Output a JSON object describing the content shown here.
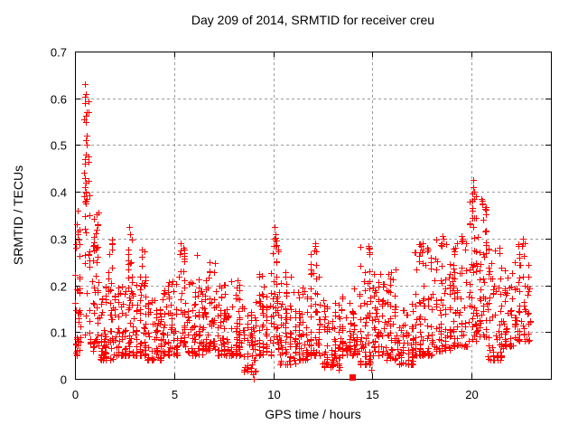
{
  "chart_data": {
    "type": "scatter",
    "title": "Day 209 of 2014, SRMTID for receiver creu",
    "xlabel": "GPS time / hours",
    "ylabel": "SRMTID / TECUs",
    "xlim": [
      0,
      24
    ],
    "ylim": [
      0,
      0.7
    ],
    "xticks": [
      [
        0,
        "0"
      ],
      [
        5,
        "5"
      ],
      [
        10,
        "10"
      ],
      [
        15,
        "15"
      ],
      [
        20,
        "20"
      ]
    ],
    "yticks": [
      [
        0,
        "0"
      ],
      [
        0.1,
        "0.1"
      ],
      [
        0.2,
        "0.2"
      ],
      [
        0.3,
        "0.3"
      ],
      [
        0.4,
        "0.4"
      ],
      [
        0.5,
        "0.5"
      ],
      [
        0.6,
        "0.6"
      ],
      [
        0.7,
        "0.7"
      ]
    ],
    "grid": true,
    "legend": "none",
    "marker": "plus",
    "colors": {
      "points": "#ff0000",
      "axis": "#000000",
      "grid": "#9b9b9b",
      "background": "#ffffff"
    },
    "density_bands": [
      [
        0.0,
        0.25,
        0.04,
        0.33,
        26,
        1.3
      ],
      [
        0.05,
        0.3,
        0.05,
        0.2,
        16,
        1.8
      ],
      [
        0.45,
        0.8,
        0.25,
        0.63,
        24,
        1.1
      ],
      [
        0.45,
        0.85,
        0.07,
        0.25,
        12,
        1.5
      ],
      [
        0.85,
        1.2,
        0.26,
        0.36,
        16,
        1.2
      ],
      [
        0.8,
        1.25,
        0.06,
        0.26,
        30,
        1.8
      ],
      [
        1.25,
        2.1,
        0.04,
        0.2,
        72,
        2.0
      ],
      [
        1.65,
        1.9,
        0.15,
        0.3,
        11,
        1.2
      ],
      [
        2.1,
        3.0,
        0.05,
        0.2,
        72,
        2.0
      ],
      [
        2.62,
        2.92,
        0.2,
        0.325,
        12,
        1.2
      ],
      [
        3.0,
        3.6,
        0.05,
        0.22,
        50,
        2.0
      ],
      [
        3.3,
        3.52,
        0.17,
        0.28,
        8,
        1.2
      ],
      [
        3.6,
        4.4,
        0.04,
        0.18,
        64,
        1.9
      ],
      [
        4.4,
        5.2,
        0.05,
        0.21,
        62,
        1.9
      ],
      [
        5.2,
        5.6,
        0.07,
        0.29,
        34,
        1.7
      ],
      [
        5.6,
        6.5,
        0.05,
        0.22,
        70,
        2.0
      ],
      [
        6.5,
        7.1,
        0.06,
        0.25,
        50,
        1.9
      ],
      [
        7.1,
        7.8,
        0.05,
        0.21,
        58,
        2.0
      ],
      [
        7.8,
        8.4,
        0.05,
        0.22,
        50,
        1.9
      ],
      [
        8.4,
        9.2,
        0.015,
        0.17,
        58,
        1.8
      ],
      [
        9.2,
        9.95,
        0.05,
        0.23,
        56,
        1.9
      ],
      [
        9.95,
        10.25,
        0.18,
        0.325,
        13,
        1.1
      ],
      [
        9.9,
        10.3,
        0.06,
        0.19,
        26,
        1.6
      ],
      [
        10.3,
        11.2,
        0.03,
        0.23,
        70,
        2.0
      ],
      [
        11.2,
        11.8,
        0.04,
        0.2,
        50,
        1.9
      ],
      [
        11.8,
        12.45,
        0.05,
        0.29,
        54,
        2.0
      ],
      [
        12.45,
        13.4,
        0.025,
        0.17,
        70,
        1.9
      ],
      [
        13.4,
        14.3,
        0.05,
        0.2,
        66,
        1.9
      ],
      [
        14.3,
        15.0,
        0.03,
        0.285,
        58,
        1.9
      ],
      [
        15.0,
        15.6,
        0.05,
        0.23,
        50,
        1.9
      ],
      [
        15.6,
        16.25,
        0.04,
        0.24,
        50,
        1.9
      ],
      [
        16.25,
        17.1,
        0.03,
        0.16,
        62,
        1.8
      ],
      [
        17.1,
        18.1,
        0.05,
        0.3,
        76,
        2.0
      ],
      [
        18.1,
        19.0,
        0.06,
        0.31,
        72,
        2.0
      ],
      [
        19.0,
        19.8,
        0.07,
        0.3,
        64,
        1.9
      ],
      [
        19.8,
        20.3,
        0.08,
        0.43,
        46,
        1.7
      ],
      [
        20.3,
        20.8,
        0.09,
        0.39,
        44,
        1.8
      ],
      [
        20.8,
        21.6,
        0.04,
        0.28,
        60,
        1.9
      ],
      [
        21.6,
        22.3,
        0.07,
        0.26,
        54,
        1.8
      ],
      [
        22.3,
        22.95,
        0.08,
        0.3,
        50,
        1.7
      ]
    ],
    "outlier_points": [
      [
        0.52,
        0.63
      ],
      [
        0.55,
        0.61
      ],
      [
        0.52,
        0.59
      ],
      [
        0.6,
        0.57
      ],
      [
        0.56,
        0.55
      ],
      [
        0.6,
        0.52
      ],
      [
        0.53,
        0.51
      ],
      [
        0.58,
        0.5
      ],
      [
        0.55,
        0.48
      ],
      [
        0.5,
        0.47
      ],
      [
        0.47,
        0.44
      ],
      [
        0.52,
        0.43
      ],
      [
        0.56,
        0.42
      ],
      [
        0.49,
        0.41
      ],
      [
        0.53,
        0.4
      ],
      [
        0.44,
        0.39
      ],
      [
        0.58,
        0.385
      ],
      [
        0.15,
        0.36
      ],
      [
        0.1,
        0.33
      ],
      [
        0.12,
        0.31
      ],
      [
        2.75,
        0.325
      ],
      [
        2.78,
        0.31
      ],
      [
        10.05,
        0.325
      ],
      [
        10.08,
        0.3
      ],
      [
        10.1,
        0.295
      ],
      [
        10.12,
        0.285
      ],
      [
        12.1,
        0.29
      ],
      [
        12.05,
        0.275
      ],
      [
        14.8,
        0.285
      ],
      [
        14.86,
        0.27
      ],
      [
        17.45,
        0.285
      ],
      [
        17.5,
        0.27
      ],
      [
        17.95,
        0.25
      ],
      [
        18.55,
        0.305
      ],
      [
        18.6,
        0.3
      ],
      [
        18.5,
        0.29
      ],
      [
        19.5,
        0.305
      ],
      [
        19.55,
        0.295
      ],
      [
        20.1,
        0.425
      ],
      [
        20.08,
        0.41
      ],
      [
        20.15,
        0.4
      ],
      [
        20.2,
        0.39
      ],
      [
        20.05,
        0.36
      ],
      [
        20.12,
        0.345
      ],
      [
        20.5,
        0.385
      ],
      [
        20.55,
        0.38
      ],
      [
        20.52,
        0.375
      ],
      [
        20.6,
        0.34
      ],
      [
        21.4,
        0.28
      ],
      [
        22.6,
        0.3
      ],
      [
        22.55,
        0.285
      ],
      [
        9.0,
        0.0
      ],
      [
        8.95,
        0.01
      ],
      [
        14.95,
        0.02
      ],
      [
        13.3,
        0.02
      ],
      [
        6.15,
        0.265
      ],
      [
        5.35,
        0.29
      ],
      [
        9.3,
        0.225
      ]
    ],
    "special_points": [
      {
        "x": 14.0,
        "y": 0.004,
        "marker": "filled-square"
      }
    ]
  }
}
